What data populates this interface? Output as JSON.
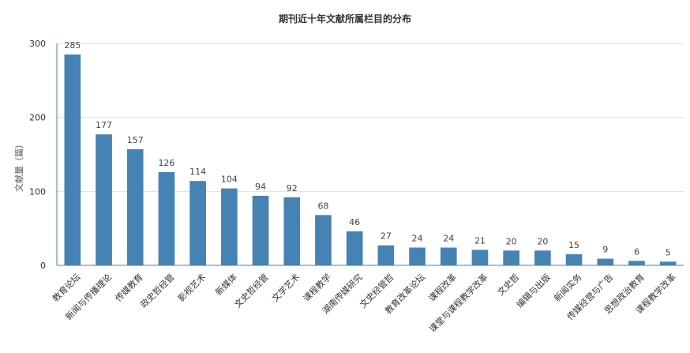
{
  "chart_data": {
    "type": "bar",
    "title": "期刊近十年文献所属栏目的分布",
    "xlabel": "",
    "ylabel": "文献量（篇）",
    "ylim": [
      0,
      300
    ],
    "yticks": [
      0,
      100,
      200,
      300
    ],
    "grid": true,
    "bar_color": "#4682b4",
    "categories": [
      "教育论坛",
      "新闻与传播理论",
      "传媒教育",
      "政史哲经管",
      "影视艺术",
      "新媒体",
      "文史哲经管",
      "文学艺术",
      "课程教学",
      "湖南传媒研究",
      "文史经管哲",
      "教育改革论坛",
      "课程改革",
      "课堂与课程教学改革",
      "文史哲",
      "编辑与出版",
      "新闻实务",
      "传媒经营与广告",
      "思想政治教育",
      "课程教学改革"
    ],
    "values": [
      285,
      177,
      157,
      126,
      114,
      104,
      94,
      92,
      68,
      46,
      27,
      24,
      24,
      21,
      20,
      20,
      15,
      9,
      6,
      5
    ]
  }
}
